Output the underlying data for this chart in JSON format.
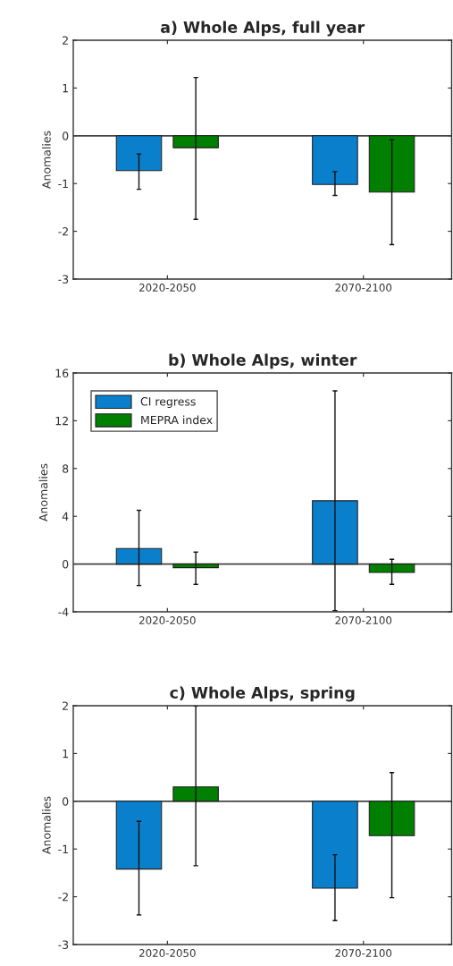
{
  "chart_data": [
    {
      "type": "bar",
      "title": "a) Whole Alps, full year",
      "ylabel": "Anomalies",
      "categories": [
        "2020-2050",
        "2070-2100"
      ],
      "ylim": [
        -3,
        2
      ],
      "yticks": [
        -3,
        -2,
        -1,
        0,
        1,
        2
      ],
      "ref_lines": [
        {
          "axis": "y",
          "value": 0
        }
      ],
      "series": [
        {
          "color": "#0a7fcc",
          "values": [
            -0.73,
            -1.02
          ],
          "errors": [
            [
              -1.12,
              -0.38
            ],
            [
              -1.25,
              -0.75
            ]
          ]
        },
        {
          "color": "#007f00",
          "values": [
            -0.25,
            -1.18
          ],
          "errors": [
            [
              -1.75,
              1.22
            ],
            [
              -2.28,
              -0.08
            ]
          ]
        }
      ]
    },
    {
      "type": "bar",
      "title": "b) Whole Alps, winter",
      "ylabel": "Anomalies",
      "categories": [
        "2020-2050",
        "2070-2100"
      ],
      "ylim": [
        -4,
        16
      ],
      "yticks": [
        -4,
        0,
        4,
        8,
        12,
        16
      ],
      "ref_lines": [
        {
          "axis": "y",
          "value": 0
        }
      ],
      "legend": "top left",
      "series": [
        {
          "name": "CI regress",
          "color": "#0a7fcc",
          "values": [
            1.3,
            5.3
          ],
          "errors": [
            [
              -1.8,
              4.5
            ],
            [
              -3.9,
              14.5
            ]
          ]
        },
        {
          "name": "MEPRA index",
          "color": "#007f00",
          "values": [
            -0.3,
            -0.7
          ],
          "errors": [
            [
              -1.7,
              1.0
            ],
            [
              -1.7,
              0.4
            ]
          ]
        }
      ]
    },
    {
      "type": "bar",
      "title": "c) Whole Alps, spring",
      "ylabel": "Anomalies",
      "categories": [
        "2020-2050",
        "2070-2100"
      ],
      "ylim": [
        -3,
        2
      ],
      "yticks": [
        -3,
        -2,
        -1,
        0,
        1,
        2
      ],
      "ref_lines": [
        {
          "axis": "y",
          "value": 0
        }
      ],
      "series": [
        {
          "color": "#0a7fcc",
          "values": [
            -1.42,
            -1.82
          ],
          "errors": [
            [
              -2.38,
              -0.42
            ],
            [
              -2.5,
              -1.12
            ]
          ]
        },
        {
          "color": "#007f00",
          "values": [
            0.3,
            -0.72
          ],
          "errors": [
            [
              -1.35,
              2.0
            ],
            [
              -2.02,
              0.6
            ]
          ]
        }
      ]
    }
  ]
}
